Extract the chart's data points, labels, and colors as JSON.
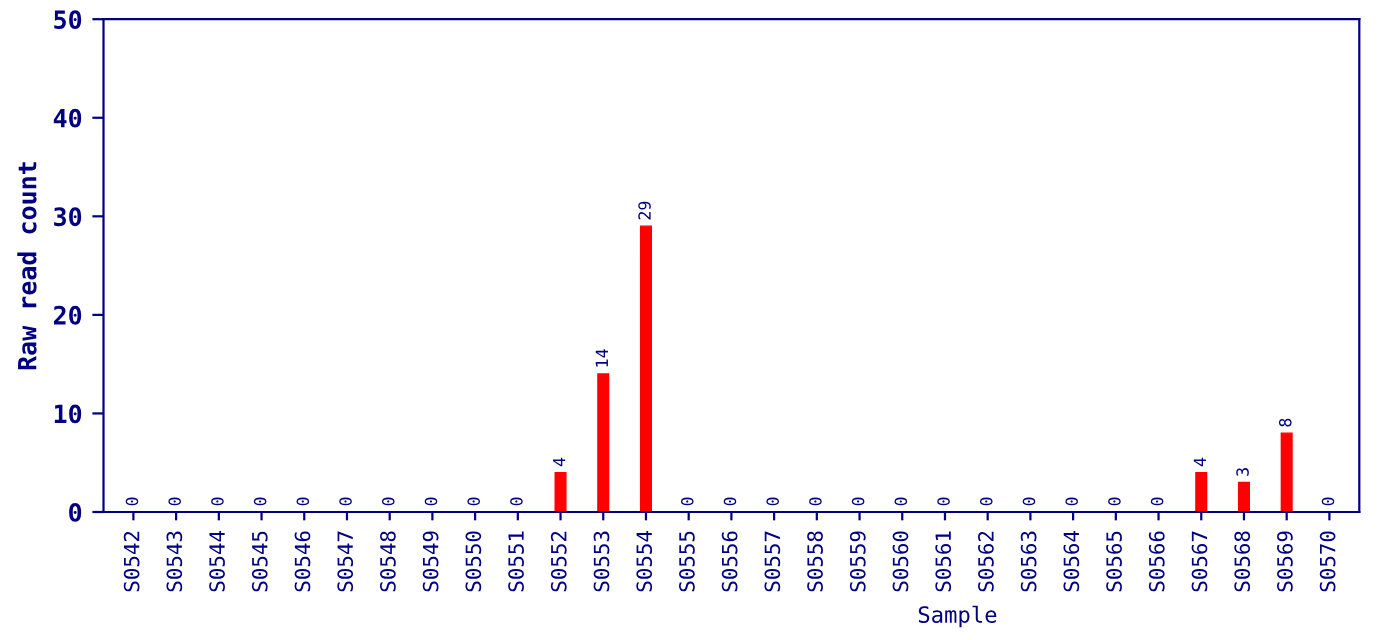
{
  "chart_data": {
    "type": "bar",
    "xlabel": "Sample",
    "ylabel": "Raw read count",
    "categories": [
      "S0542",
      "S0543",
      "S0544",
      "S0545",
      "S0546",
      "S0547",
      "S0548",
      "S0549",
      "S0550",
      "S0551",
      "S0552",
      "S0553",
      "S0554",
      "S0555",
      "S0556",
      "S0557",
      "S0558",
      "S0559",
      "S0560",
      "S0561",
      "S0562",
      "S0563",
      "S0564",
      "S0565",
      "S0566",
      "S0567",
      "S0568",
      "S0569",
      "S0570"
    ],
    "values": [
      0,
      0,
      0,
      0,
      0,
      0,
      0,
      0,
      0,
      0,
      4,
      14,
      29,
      0,
      0,
      0,
      0,
      0,
      0,
      0,
      0,
      0,
      0,
      0,
      0,
      4,
      3,
      8,
      0
    ],
    "color": "#ff0000",
    "ylim": [
      0,
      50
    ],
    "yticks": [
      0,
      10,
      20,
      30,
      40,
      50
    ],
    "data_labels": true,
    "grid": false
  }
}
